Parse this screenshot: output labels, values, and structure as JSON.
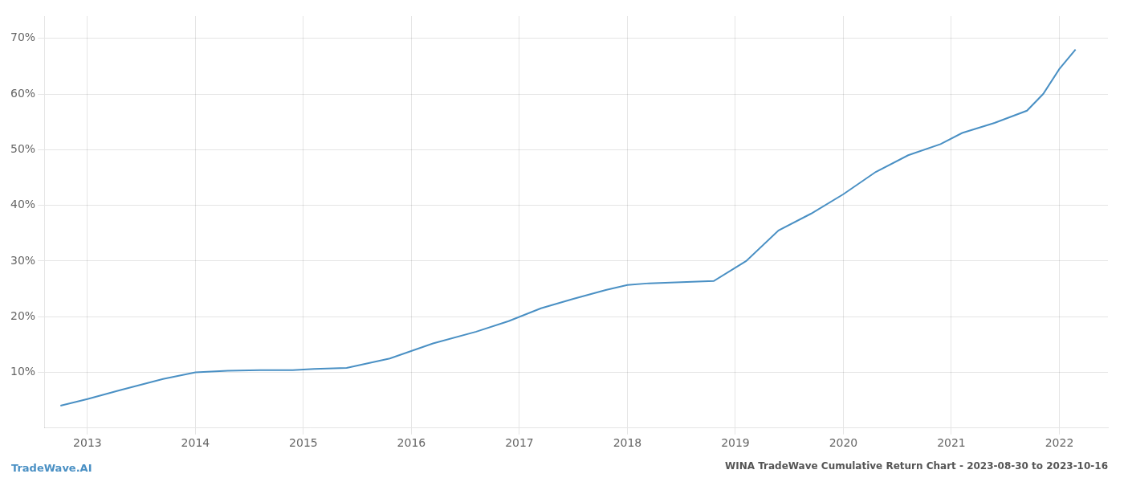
{
  "chart_data": {
    "type": "line",
    "title": "WINA TradeWave Cumulative Return Chart - 2023-08-30 to 2023-10-16",
    "annotations": [
      "TradeWave.AI"
    ],
    "x": [
      2012.75,
      2013.0,
      2013.3,
      2013.7,
      2014.0,
      2014.3,
      2014.6,
      2014.9,
      2015.1,
      2015.4,
      2015.8,
      2016.2,
      2016.6,
      2016.9,
      2017.2,
      2017.5,
      2017.8,
      2018.0,
      2018.2,
      2018.5,
      2018.8,
      2019.1,
      2019.4,
      2019.7,
      2020.0,
      2020.3,
      2020.6,
      2020.9,
      2021.1,
      2021.4,
      2021.7,
      2021.85,
      2022.0,
      2022.15
    ],
    "values": [
      0.04,
      0.052,
      0.068,
      0.088,
      0.1,
      0.103,
      0.104,
      0.104,
      0.106,
      0.108,
      0.125,
      0.152,
      0.173,
      0.192,
      0.215,
      0.232,
      0.248,
      0.257,
      0.26,
      0.262,
      0.264,
      0.3,
      0.355,
      0.385,
      0.42,
      0.46,
      0.49,
      0.51,
      0.53,
      0.548,
      0.57,
      0.6,
      0.645,
      0.68
    ],
    "color": "#4a90c4",
    "xlim": [
      2012.6,
      2022.45
    ],
    "xticks": [
      2013,
      2014,
      2015,
      2016,
      2017,
      2018,
      2019,
      2020,
      2021,
      2022
    ],
    "ylim": [
      0.0,
      0.74
    ],
    "yticks": [
      {
        "value": 0.1,
        "label": "10%"
      },
      {
        "value": 0.2,
        "label": "20%"
      },
      {
        "value": 0.3,
        "label": "30%"
      },
      {
        "value": 0.4,
        "label": "40%"
      },
      {
        "value": 0.5,
        "label": "50%"
      },
      {
        "value": 0.6,
        "label": "60%"
      },
      {
        "value": 0.7,
        "label": "70%"
      }
    ],
    "grid": true
  }
}
